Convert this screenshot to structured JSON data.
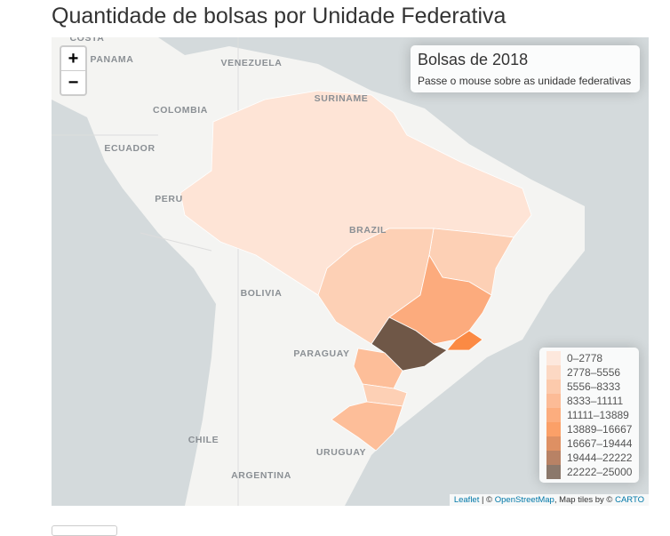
{
  "title": "Quantidade de bolsas por Unidade Federativa",
  "zoom": {
    "in": "+",
    "out": "−"
  },
  "info": {
    "title": "Bolsas de 2018",
    "subtitle": "Passe o mouse sobre as unidade federativas"
  },
  "legend": [
    {
      "label": "0–2778",
      "color": "#fee4d6"
    },
    {
      "label": "2778–5556",
      "color": "#fdd0b5"
    },
    {
      "label": "5556–8333",
      "color": "#fdbe99"
    },
    {
      "label": "8333–11111",
      "color": "#fcab7d"
    },
    {
      "label": "11111–13889",
      "color": "#fc9a5f"
    },
    {
      "label": "13889–16667",
      "color": "#fb8a44"
    },
    {
      "label": "16667–19444",
      "color": "#d7763d"
    },
    {
      "label": "19444–22222",
      "color": "#a86440"
    },
    {
      "label": "22222–25000",
      "color": "#6f5747"
    }
  ],
  "map_labels": [
    "COSTA",
    "PANAMA",
    "VENEZUELA",
    "COLOMBIA",
    "SURINAME",
    "ECUADOR",
    "PERU",
    "BRAZIL",
    "BOLIVIA",
    "PARAGUAY",
    "CHILE",
    "URUGUAY",
    "ARGENTINA"
  ],
  "attribution": {
    "leaflet": "Leaflet",
    "sep": " | © ",
    "osm": "OpenStreetMap",
    "tiles": ", Map tiles by © ",
    "carto": "CARTO"
  }
}
